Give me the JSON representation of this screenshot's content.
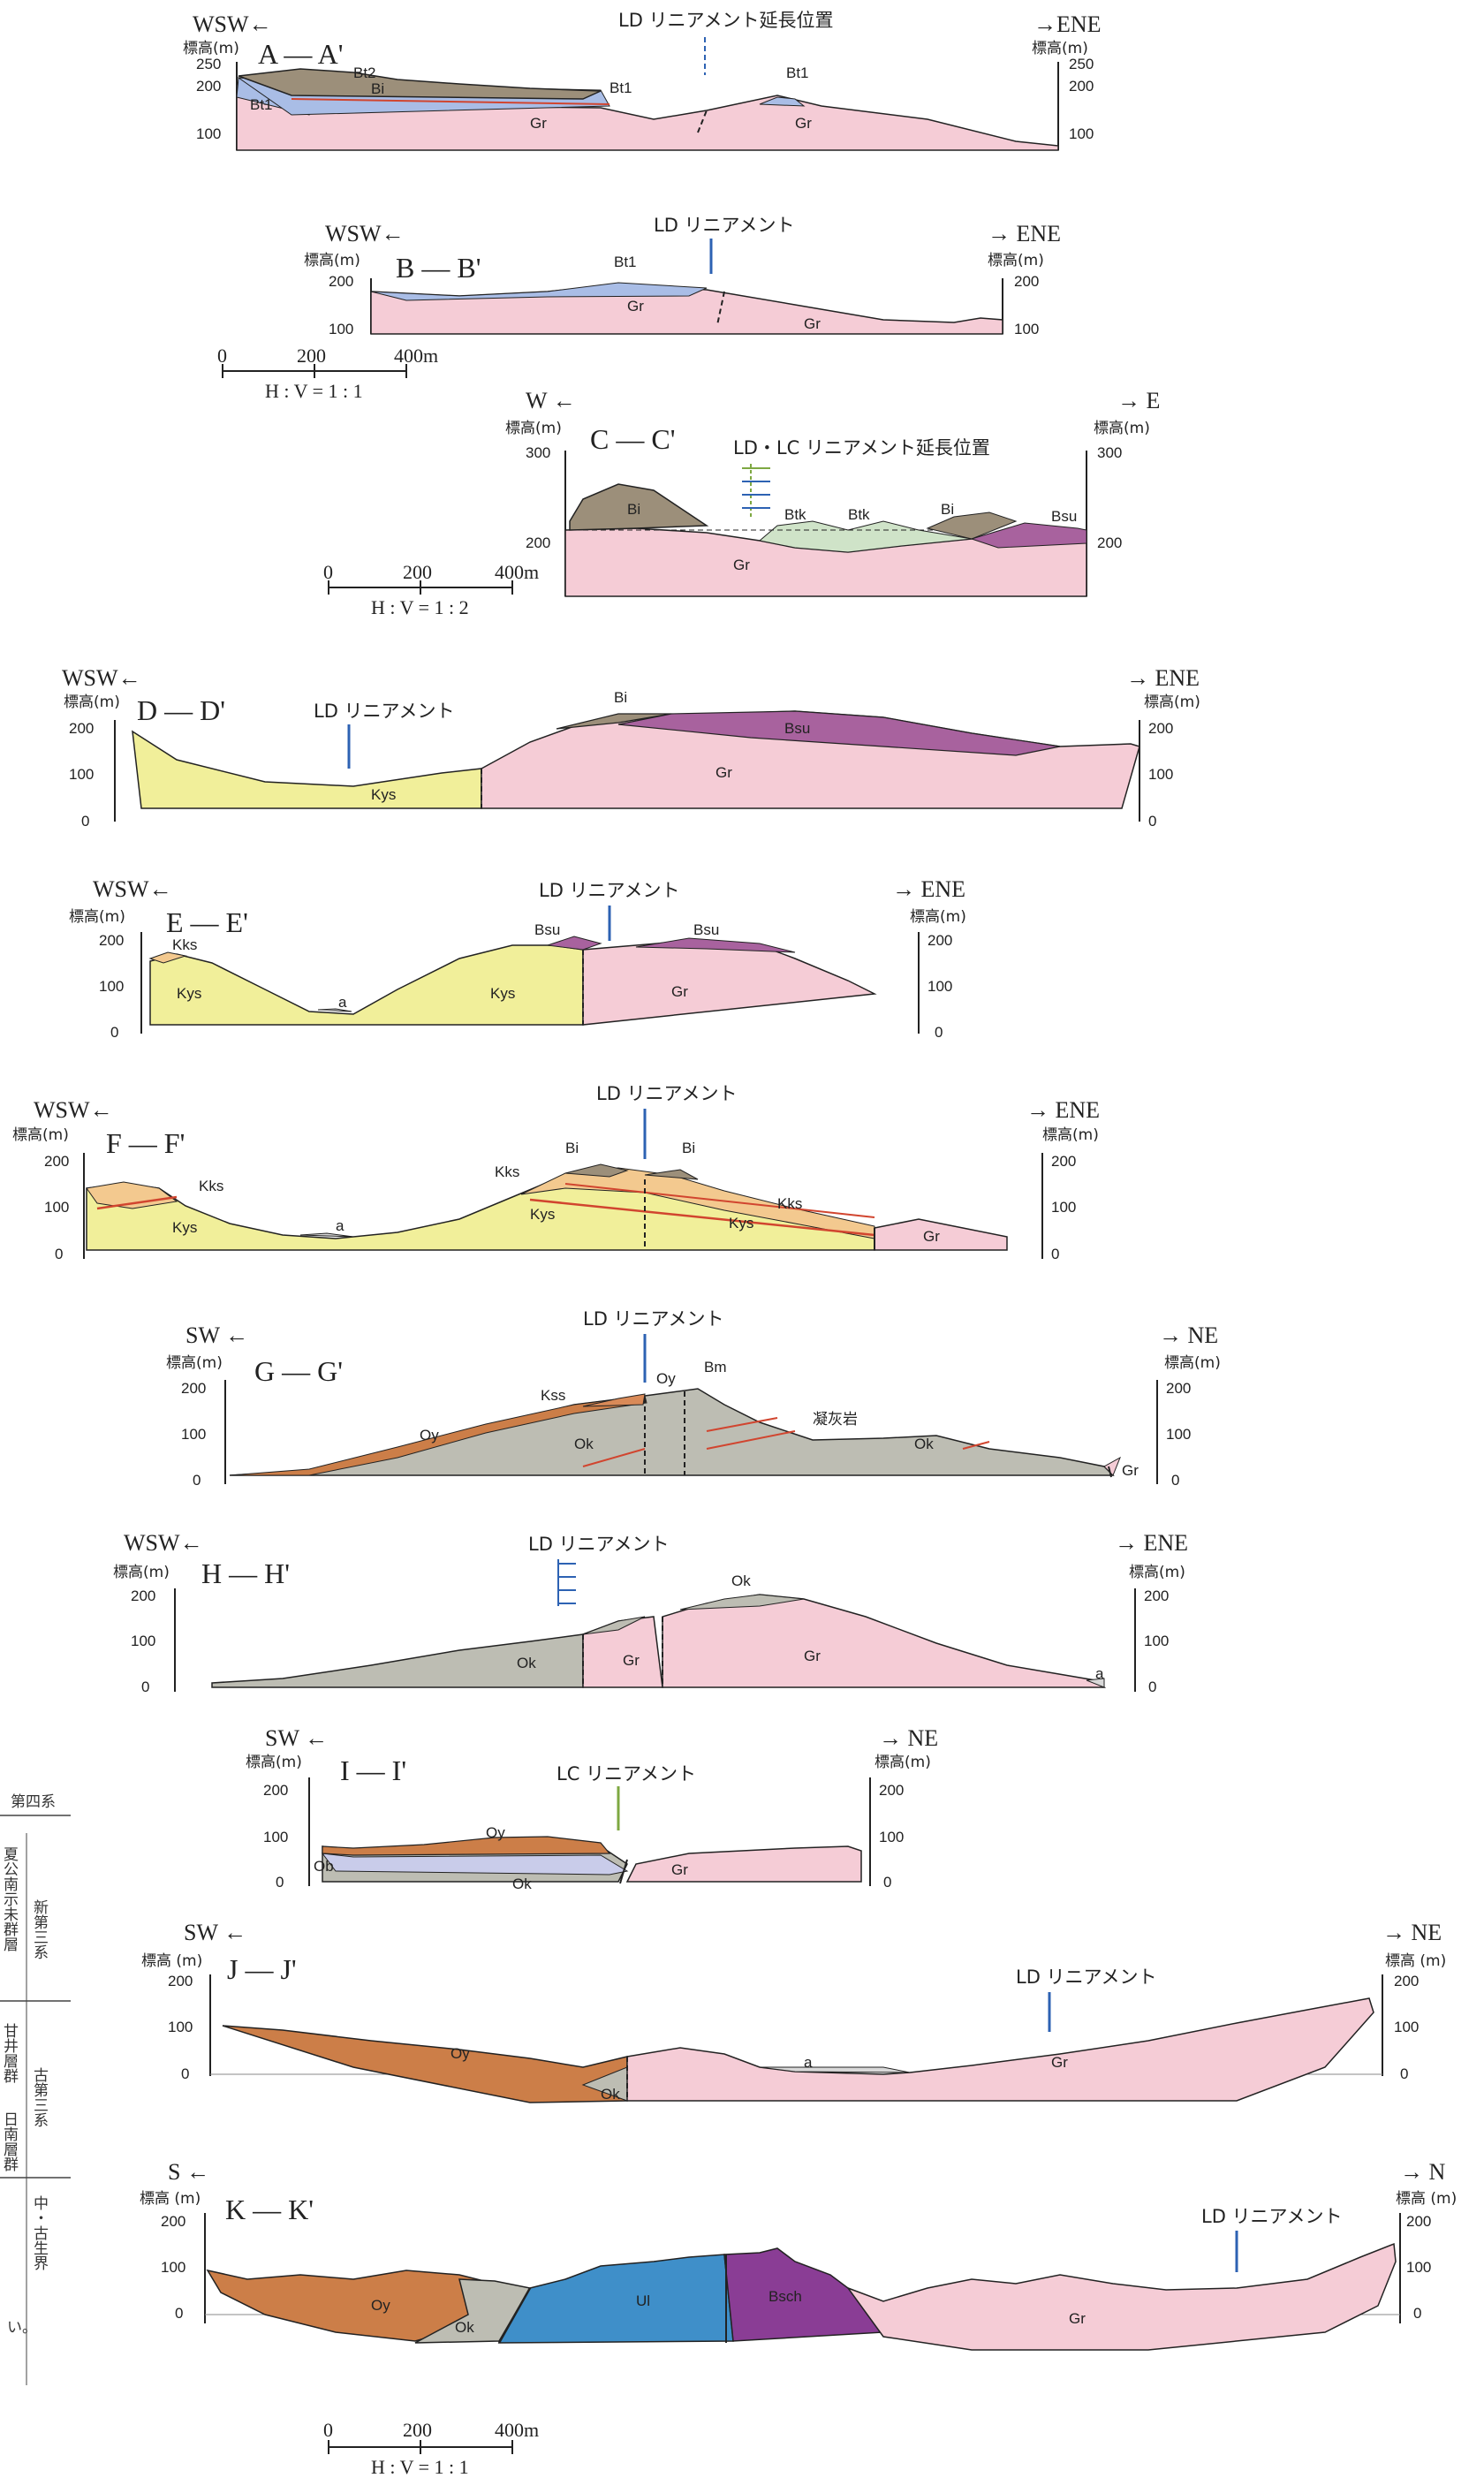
{
  "colors": {
    "Gr": "#f5ccd6",
    "Kys": "#f1ef9a",
    "Kks": "#f3c98f",
    "Bi": "#9c8f7a",
    "Bsu": "#a8629e",
    "Bt1": "#a9bde6",
    "Ok": "#bdbdb3",
    "Oy": "#cc7e48",
    "Ob": "#c9ccea",
    "Ul": "#3f8fc9",
    "Bsch": "#8a3d95",
    "Btk": "#cfe3c8",
    "Kss": "#d98a58",
    "a": "#d9d9d9",
    "blue_lineament": "#2d62b3",
    "green_lineament": "#7ea842"
  },
  "legend": {
    "quaternary": "第四系",
    "neogene": "新第三系",
    "paleogene": "古第三系",
    "meso_paleozoic": "中・古生界",
    "col_a": "夏公南示未群層",
    "col_b": "日南層群",
    "col_c": "甘井層群"
  },
  "footer_mark": "い。",
  "scales": [
    {
      "ticks": [
        "0",
        "200",
        "400m"
      ],
      "ratio": "H : V = 1 : 1"
    },
    {
      "ticks": [
        "0",
        "200",
        "400m"
      ],
      "ratio": "H : V = 1 : 2"
    },
    {
      "ticks": [
        "0",
        "200",
        "400m"
      ],
      "ratio": "H : V = 1 : 1"
    }
  ],
  "sections": [
    {
      "id": "A",
      "title": "A — A'",
      "left_dir": "WSW←",
      "right_dir": "→ENE",
      "axis_label": "標高(m)",
      "ticks": [
        "250",
        "200",
        "100"
      ],
      "lineament": "LD リニアメント延長位置",
      "units": [
        "Bt2",
        "Bi",
        "Bt1",
        "Bt1",
        "Bt1",
        "Gr",
        "Gr"
      ]
    },
    {
      "id": "B",
      "title": "B — B'",
      "left_dir": "WSW←",
      "right_dir": "→ ENE",
      "axis_label": "標高(m)",
      "ticks": [
        "200",
        "100"
      ],
      "lineament": "LD リニアメント",
      "units": [
        "Bt1",
        "Gr",
        "Gr"
      ]
    },
    {
      "id": "C",
      "title": "C — C'",
      "left_dir": "W ←",
      "right_dir": "→ E",
      "axis_label": "標高(m)",
      "ticks": [
        "300",
        "200"
      ],
      "lineament": "LD・LC リニアメント延長位置",
      "units": [
        "Bi",
        "Btk",
        "Btk",
        "Bi",
        "Bsu",
        "Gr"
      ]
    },
    {
      "id": "D",
      "title": "D — D'",
      "left_dir": "WSW←",
      "right_dir": "→ ENE",
      "axis_label": "標高(m)",
      "ticks": [
        "200",
        "100",
        "0"
      ],
      "lineament": "LD リニアメント",
      "units": [
        "Bi",
        "Bsu",
        "Kys",
        "Gr"
      ]
    },
    {
      "id": "E",
      "title": "E — E'",
      "left_dir": "WSW←",
      "right_dir": "→ ENE",
      "axis_label": "標高(m)",
      "ticks": [
        "200",
        "100",
        "0"
      ],
      "lineament": "LD リニアメント",
      "units": [
        "Kks",
        "Kys",
        "a",
        "Kys",
        "Bsu",
        "Bsu",
        "Gr"
      ]
    },
    {
      "id": "F",
      "title": "F — F'",
      "left_dir": "WSW←",
      "right_dir": "→ ENE",
      "axis_label": "標高(m)",
      "ticks": [
        "200",
        "100",
        "0"
      ],
      "lineament": "LD リニアメント",
      "units": [
        "Kks",
        "Kys",
        "a",
        "Kks",
        "Bi",
        "Bi",
        "Kys",
        "Kys",
        "Kks",
        "Gr"
      ]
    },
    {
      "id": "G",
      "title": "G — G'",
      "left_dir": "SW ←",
      "right_dir": "→ NE",
      "axis_label": "標高(m)",
      "ticks": [
        "200",
        "100",
        "0"
      ],
      "lineament": "LD リニアメント",
      "units": [
        "Oy",
        "Kss",
        "Oy",
        "Bm",
        "Ok",
        "凝灰岩",
        "Ok",
        "Gr"
      ]
    },
    {
      "id": "H",
      "title": "H — H'",
      "left_dir": "WSW←",
      "right_dir": "→ ENE",
      "axis_label": "標高(m)",
      "ticks": [
        "200",
        "100",
        "0"
      ],
      "lineament": "LD リニアメント",
      "units": [
        "Ok",
        "Ok",
        "Gr",
        "Gr",
        "a"
      ]
    },
    {
      "id": "I",
      "title": "I — I'",
      "left_dir": "SW ←",
      "right_dir": "→ NE",
      "axis_label": "標高(m)",
      "ticks": [
        "200",
        "100",
        "0"
      ],
      "lineament": "LC リニアメント",
      "units": [
        "Oy",
        "Ob",
        "Ok",
        "Gr"
      ]
    },
    {
      "id": "J",
      "title": "J — J'",
      "left_dir": "SW ←",
      "right_dir": "→ NE",
      "axis_label": "標高 (m)",
      "ticks": [
        "200",
        "100",
        "0"
      ],
      "lineament": "LD リニアメント",
      "units": [
        "Oy",
        "Ok",
        "a",
        "Gr"
      ]
    },
    {
      "id": "K",
      "title": "K — K'",
      "left_dir": "S ←",
      "right_dir": "→ N",
      "axis_label": "標高 (m)",
      "ticks": [
        "200",
        "100",
        "0"
      ],
      "lineament": "LD リニアメント",
      "units": [
        "Oy",
        "Ok",
        "Ul",
        "Bsch",
        "Gr"
      ]
    }
  ]
}
